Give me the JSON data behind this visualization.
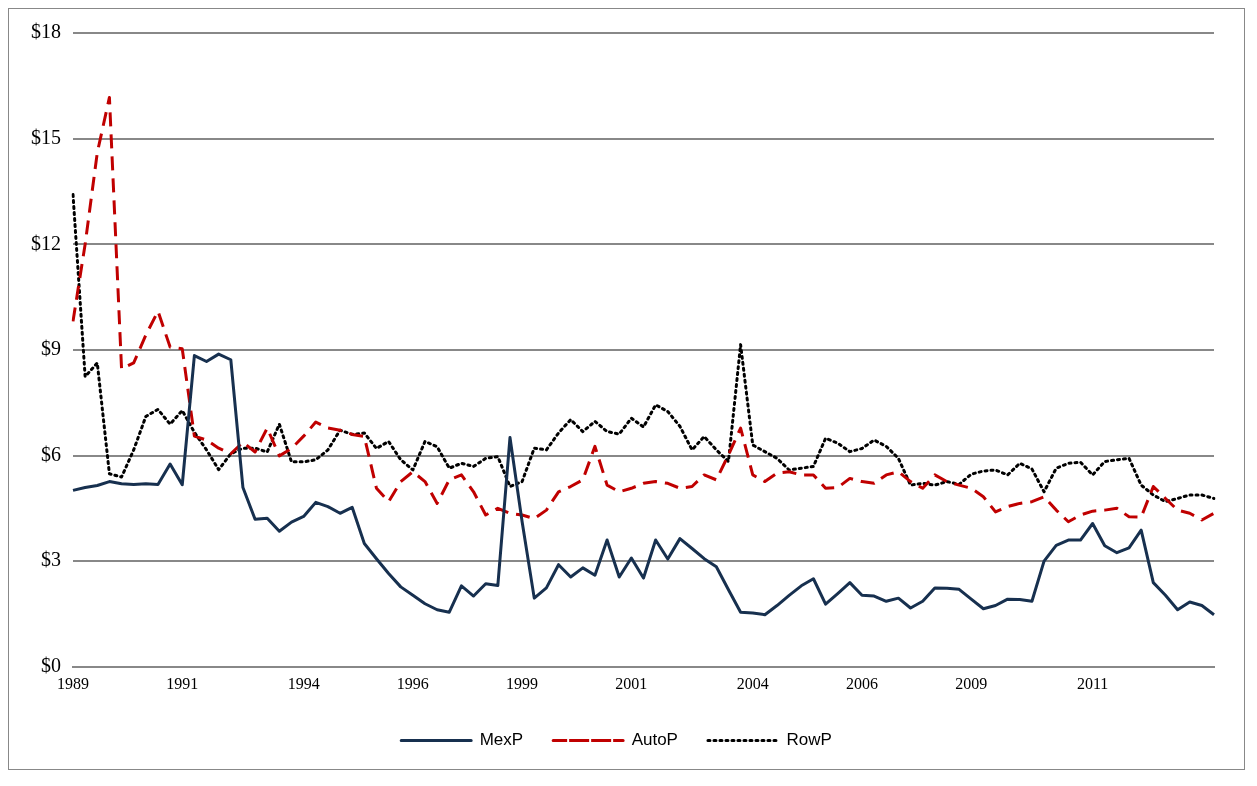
{
  "chart_data": {
    "type": "line",
    "categories": [
      "1989",
      null,
      null,
      null,
      null,
      null,
      null,
      null,
      null,
      "1991",
      null,
      null,
      null,
      null,
      null,
      null,
      null,
      null,
      null,
      "1994",
      null,
      null,
      null,
      null,
      null,
      null,
      null,
      null,
      "1996",
      null,
      null,
      null,
      null,
      null,
      null,
      null,
      null,
      "1999",
      null,
      null,
      null,
      null,
      null,
      null,
      null,
      null,
      "2001",
      null,
      null,
      null,
      null,
      null,
      null,
      null,
      null,
      null,
      "2004",
      null,
      null,
      null,
      null,
      null,
      null,
      null,
      null,
      "2006",
      null,
      null,
      null,
      null,
      null,
      null,
      null,
      null,
      "2009",
      null,
      null,
      null,
      null,
      null,
      null,
      null,
      null,
      null,
      "2011",
      null,
      null,
      null,
      null,
      null,
      null,
      null,
      null,
      null,
      null
    ],
    "series": [
      {
        "name": "MexP",
        "color": "#17304f",
        "line_style": "solid",
        "values": [
          5.01,
          5.09,
          5.15,
          5.26,
          5.2,
          5.18,
          5.2,
          5.18,
          5.76,
          5.17,
          8.84,
          8.67,
          8.88,
          8.72,
          5.09,
          4.19,
          4.22,
          3.85,
          4.11,
          4.27,
          4.67,
          4.55,
          4.36,
          4.53,
          3.5,
          3.07,
          2.65,
          2.27,
          2.03,
          1.79,
          1.62,
          1.55,
          2.3,
          2.01,
          2.36,
          2.31,
          6.51,
          4.12,
          1.95,
          2.24,
          2.9,
          2.55,
          2.81,
          2.6,
          3.6,
          2.55,
          3.09,
          2.52,
          3.6,
          3.06,
          3.64,
          3.36,
          3.07,
          2.84,
          2.19,
          1.55,
          1.53,
          1.48,
          1.74,
          2.03,
          2.3,
          2.5,
          1.78,
          2.08,
          2.39,
          2.03,
          2.01,
          1.86,
          1.95,
          1.67,
          1.86,
          2.24,
          2.23,
          2.2,
          1.92,
          1.65,
          1.74,
          1.92,
          1.91,
          1.86,
          3.0,
          3.45,
          3.6,
          3.6,
          4.07,
          3.44,
          3.24,
          3.38,
          3.88,
          2.39,
          2.03,
          1.62,
          1.84,
          1.74,
          1.48
        ]
      },
      {
        "name": "AutoP",
        "color": "#c00000",
        "line_style": "dashed",
        "values": [
          9.81,
          12.0,
          14.6,
          16.17,
          8.46,
          8.63,
          9.42,
          10.1,
          9.08,
          9.03,
          6.55,
          6.44,
          6.21,
          6.05,
          6.38,
          6.1,
          6.78,
          5.99,
          6.2,
          6.55,
          6.95,
          6.78,
          6.72,
          6.6,
          6.54,
          5.07,
          4.69,
          5.26,
          5.54,
          5.26,
          4.64,
          5.31,
          5.45,
          4.97,
          4.31,
          4.5,
          4.36,
          4.31,
          4.21,
          4.45,
          4.97,
          5.12,
          5.31,
          6.26,
          5.16,
          4.97,
          5.07,
          5.21,
          5.26,
          5.21,
          5.07,
          5.12,
          5.45,
          5.31,
          6.02,
          6.78,
          5.45,
          5.26,
          5.5,
          5.54,
          5.45,
          5.45,
          5.07,
          5.09,
          5.35,
          5.26,
          5.21,
          5.45,
          5.54,
          5.26,
          5.07,
          5.45,
          5.26,
          5.16,
          5.07,
          4.83,
          4.4,
          4.55,
          4.64,
          4.69,
          4.83,
          4.45,
          4.12,
          4.31,
          4.42,
          4.45,
          4.5,
          4.26,
          4.25,
          5.12,
          4.78,
          4.45,
          4.36,
          4.17,
          4.36
        ]
      },
      {
        "name": "RowP",
        "color": "#000000",
        "line_style": "dotted",
        "values": [
          13.41,
          8.24,
          8.63,
          5.48,
          5.39,
          6.16,
          7.11,
          7.31,
          6.89,
          7.28,
          6.66,
          6.16,
          5.6,
          6.05,
          6.21,
          6.21,
          6.1,
          6.89,
          5.82,
          5.82,
          5.88,
          6.16,
          6.72,
          6.6,
          6.64,
          6.2,
          6.4,
          5.88,
          5.59,
          6.4,
          6.25,
          5.64,
          5.78,
          5.69,
          5.92,
          5.97,
          5.12,
          5.26,
          6.21,
          6.16,
          6.64,
          7.02,
          6.68,
          6.97,
          6.68,
          6.61,
          7.06,
          6.81,
          7.44,
          7.25,
          6.83,
          6.16,
          6.54,
          6.16,
          5.83,
          9.15,
          6.3,
          6.11,
          5.92,
          5.59,
          5.64,
          5.69,
          6.49,
          6.35,
          6.11,
          6.2,
          6.44,
          6.26,
          5.92,
          5.16,
          5.21,
          5.16,
          5.26,
          5.18,
          5.47,
          5.56,
          5.59,
          5.45,
          5.78,
          5.62,
          4.97,
          5.64,
          5.78,
          5.81,
          5.45,
          5.83,
          5.88,
          5.92,
          5.16,
          4.88,
          4.69,
          4.78,
          4.88,
          4.88,
          4.78
        ]
      }
    ],
    "ylim": [
      0,
      18
    ],
    "yticks": [
      {
        "value": 0,
        "label": "$0"
      },
      {
        "value": 3,
        "label": "$3"
      },
      {
        "value": 6,
        "label": "$6"
      },
      {
        "value": 9,
        "label": "$9"
      },
      {
        "value": 12,
        "label": "$12"
      },
      {
        "value": 15,
        "label": "$15"
      },
      {
        "value": 18,
        "label": "$18"
      }
    ],
    "grid": "y",
    "legend": "bottom",
    "marker": "none"
  }
}
